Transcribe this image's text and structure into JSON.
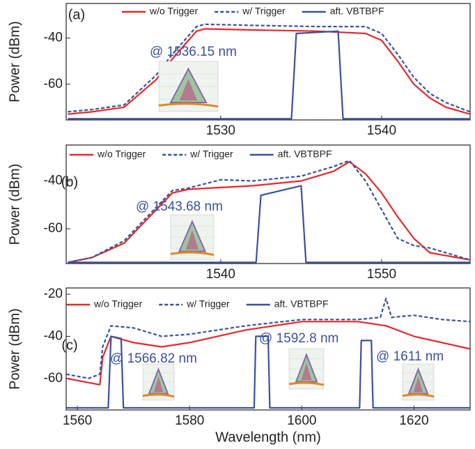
{
  "chart_data": [
    {
      "type": "line",
      "panel_label": "(a)",
      "y_label": "Power (dBm)",
      "annotations": [
        "@ 1536.15 nm"
      ],
      "xlim": [
        1520.4,
        1545.5
      ],
      "ylim": [
        -75.5,
        -25
      ],
      "xticks": [
        1530,
        1540
      ],
      "yticks": [
        -40,
        -60
      ],
      "legend": "upper center",
      "series": [
        {
          "name": "w/o Trigger",
          "color": "#e8262a",
          "style": "solid",
          "x": [
            1520.5,
            1522,
            1524,
            1526,
            1527,
            1528,
            1528.5,
            1529,
            1532,
            1536,
            1539,
            1540,
            1541,
            1542,
            1543,
            1544,
            1545.5
          ],
          "values": [
            -73,
            -72,
            -70,
            -58,
            -49,
            -41,
            -37,
            -36,
            -36.5,
            -37,
            -38,
            -41,
            -50,
            -60,
            -66,
            -70,
            -73
          ]
        },
        {
          "name": "w/ Trigger",
          "color": "#3a4fa0",
          "style": "dashed",
          "x": [
            1520.5,
            1522,
            1524,
            1526,
            1527,
            1528,
            1528.5,
            1529,
            1532,
            1536,
            1539,
            1540,
            1541,
            1542,
            1543,
            1544,
            1545.5
          ],
          "values": [
            -72,
            -71,
            -69,
            -56,
            -47,
            -39,
            -35,
            -34,
            -34.5,
            -35,
            -35,
            -38,
            -47,
            -57,
            -64,
            -68,
            -72
          ]
        },
        {
          "name": "aft. VBTBPF",
          "color": "#3a4fa0",
          "style": "solid",
          "x": [
            1520.5,
            1534.4,
            1534.7,
            1537.3,
            1537.6,
            1545.5
          ],
          "values": [
            -75,
            -75,
            -38,
            -37,
            -75,
            -75
          ]
        }
      ]
    },
    {
      "type": "line",
      "panel_label": "(b)",
      "y_label": "Power (dBm)",
      "annotations": [
        "@ 1543.68 nm"
      ],
      "xlim": [
        1530.4,
        1555.5
      ],
      "ylim": [
        -74.5,
        -25
      ],
      "xticks": [
        1540,
        1550
      ],
      "yticks": [
        -40,
        -60
      ],
      "legend": "upper center",
      "series": [
        {
          "name": "w/o Trigger",
          "color": "#e8262a",
          "style": "solid",
          "x": [
            1530.5,
            1532,
            1534,
            1536,
            1537,
            1538,
            1542,
            1545,
            1547,
            1548,
            1549,
            1550,
            1551,
            1552,
            1553,
            1555.5
          ],
          "values": [
            -74,
            -72,
            -66,
            -52,
            -45,
            -43.5,
            -42,
            -40,
            -36,
            -32,
            -37,
            -45,
            -55,
            -64,
            -70,
            -73
          ]
        },
        {
          "name": "w/ Trigger",
          "color": "#3a4fa0",
          "style": "dashed",
          "x": [
            1530.5,
            1532,
            1534,
            1536,
            1537,
            1538,
            1540,
            1542,
            1545,
            1547,
            1548,
            1549,
            1550,
            1551,
            1552,
            1553,
            1555.5
          ],
          "values": [
            -74,
            -72,
            -65,
            -51,
            -44,
            -43,
            -39.5,
            -40,
            -38,
            -34,
            -31.5,
            -40,
            -52,
            -64,
            -67,
            -68,
            -73
          ]
        },
        {
          "name": "aft. VBTBPF",
          "color": "#3a4fa0",
          "style": "solid",
          "x": [
            1530.5,
            1542.2,
            1542.5,
            1545,
            1545.3,
            1555.5
          ],
          "values": [
            -74,
            -74,
            -46,
            -42,
            -74,
            -74
          ]
        }
      ]
    },
    {
      "type": "line",
      "panel_label": "(c)",
      "y_label": "Power (dBm)",
      "x_label": "Wavelength (nm)",
      "annotations": [
        "@ 1566.82 nm",
        "@ 1592.8 nm",
        "@ 1611 nm"
      ],
      "xlim": [
        1558,
        1630
      ],
      "ylim": [
        -75,
        -17
      ],
      "xticks": [
        1560,
        1580,
        1600,
        1620
      ],
      "yticks": [
        -20,
        -40,
        -60
      ],
      "legend": "upper center",
      "series": [
        {
          "name": "w/o Trigger",
          "color": "#e8262a",
          "style": "solid",
          "x": [
            1558,
            1562,
            1564,
            1564.5,
            1566,
            1570,
            1575,
            1580,
            1590,
            1600,
            1610,
            1615,
            1620,
            1625,
            1630
          ],
          "values": [
            -60,
            -62,
            -63,
            -50,
            -40,
            -43,
            -45,
            -43,
            -37,
            -33,
            -33,
            -35,
            -40,
            -43,
            -46
          ]
        },
        {
          "name": "w/ Trigger",
          "color": "#3a4fa0",
          "style": "dashed",
          "x": [
            1558,
            1562,
            1564,
            1564.5,
            1566,
            1570,
            1575,
            1580,
            1590,
            1600,
            1610,
            1614,
            1615,
            1616,
            1620,
            1625,
            1630
          ],
          "values": [
            -58,
            -60,
            -58,
            -45,
            -35,
            -36,
            -40,
            -39,
            -35,
            -32,
            -32,
            -31,
            -22,
            -31,
            -30,
            -32,
            -33
          ]
        },
        {
          "name": "aft. VBTBPF",
          "color": "#3a4fa0",
          "style": "solid",
          "x": [
            1558,
            1565.5,
            1566,
            1567.8,
            1568.2,
            1591.5,
            1591.8,
            1594,
            1594.3,
            1610.3,
            1610.6,
            1612.4,
            1612.7,
            1630
          ],
          "values": [
            -74,
            -74,
            -40,
            -41,
            -74,
            -74,
            -40,
            -40,
            -74,
            -74,
            -42,
            -42,
            -74,
            -74
          ]
        }
      ]
    }
  ]
}
